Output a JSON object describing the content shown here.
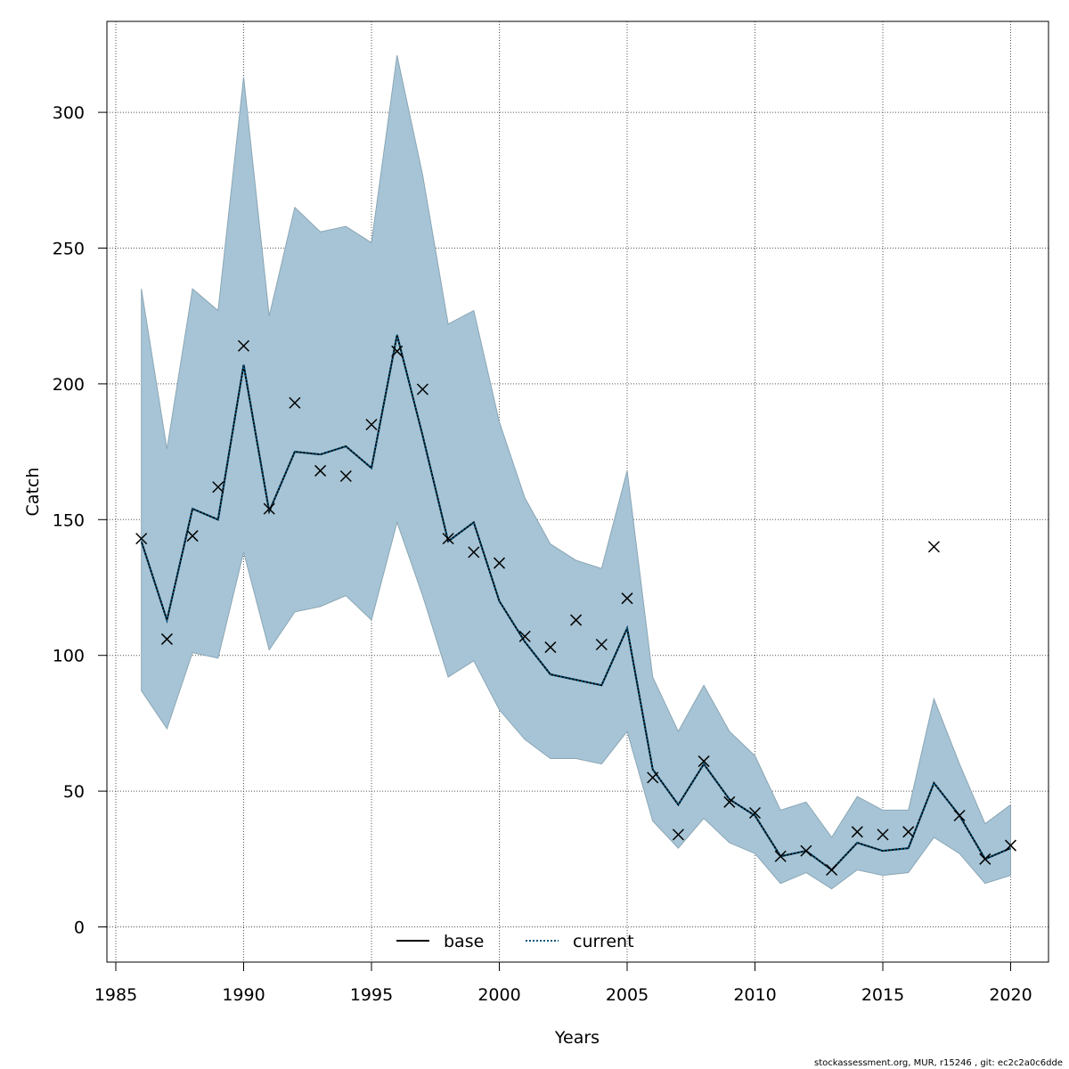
{
  "chart_data": {
    "type": "line",
    "xlabel": "Years",
    "ylabel": "Catch",
    "xlim": [
      1985,
      2020
    ],
    "ylim": [
      0,
      320
    ],
    "xticks": [
      1985,
      1990,
      1995,
      2000,
      2005,
      2010,
      2015,
      2020
    ],
    "yticks": [
      0,
      50,
      100,
      150,
      200,
      250,
      300
    ],
    "grid": true,
    "legend_position": "bottom-center",
    "x": [
      1986,
      1987,
      1988,
      1989,
      1990,
      1991,
      1992,
      1993,
      1994,
      1995,
      1996,
      1997,
      1998,
      1999,
      2000,
      2001,
      2002,
      2003,
      2004,
      2005,
      2006,
      2007,
      2008,
      2009,
      2010,
      2011,
      2012,
      2013,
      2014,
      2015,
      2016,
      2017,
      2018,
      2019,
      2020
    ],
    "observed": [
      143,
      106,
      144,
      162,
      214,
      154,
      193,
      168,
      166,
      185,
      212,
      198,
      143,
      138,
      134,
      107,
      103,
      113,
      104,
      121,
      55,
      34,
      61,
      46,
      42,
      26,
      28,
      21,
      35,
      34,
      35,
      140,
      41,
      25,
      30
    ],
    "band_upper": [
      235,
      176,
      235,
      227,
      313,
      225,
      265,
      256,
      258,
      252,
      321,
      277,
      222,
      227,
      186,
      158,
      141,
      135,
      132,
      168,
      92,
      72,
      89,
      72,
      63,
      43,
      46,
      33,
      48,
      43,
      43,
      84,
      60,
      38,
      45
    ],
    "band_lower": [
      87,
      73,
      101,
      99,
      138,
      102,
      116,
      118,
      122,
      113,
      149,
      122,
      92,
      98,
      80,
      69,
      62,
      62,
      60,
      72,
      39,
      29,
      40,
      31,
      27,
      16,
      20,
      14,
      21,
      19,
      20,
      33,
      27,
      16,
      19
    ],
    "series": [
      {
        "name": "base",
        "style": "solid",
        "color": "#000000",
        "values": [
          142,
          113,
          154,
          150,
          207,
          153,
          175,
          174,
          177,
          169,
          218,
          181,
          142,
          149,
          120,
          105,
          93,
          91,
          89,
          110,
          58,
          45,
          60,
          47,
          41,
          26,
          28,
          21,
          31,
          28,
          29,
          53,
          41,
          25,
          29
        ]
      },
      {
        "name": "current",
        "style": "dotted",
        "color": "#00557f",
        "values": [
          142,
          113,
          154,
          150,
          207,
          153,
          175,
          174,
          177,
          169,
          218,
          181,
          142,
          149,
          120,
          105,
          93,
          91,
          89,
          110,
          58,
          45,
          60,
          47,
          41,
          26,
          28,
          21,
          31,
          28,
          29,
          53,
          41,
          25,
          29
        ]
      }
    ],
    "band_color": "#a6c4d5",
    "footnote": "stockassessment.org, MUR, r15246 , git: ec2c2a0c6dde"
  }
}
